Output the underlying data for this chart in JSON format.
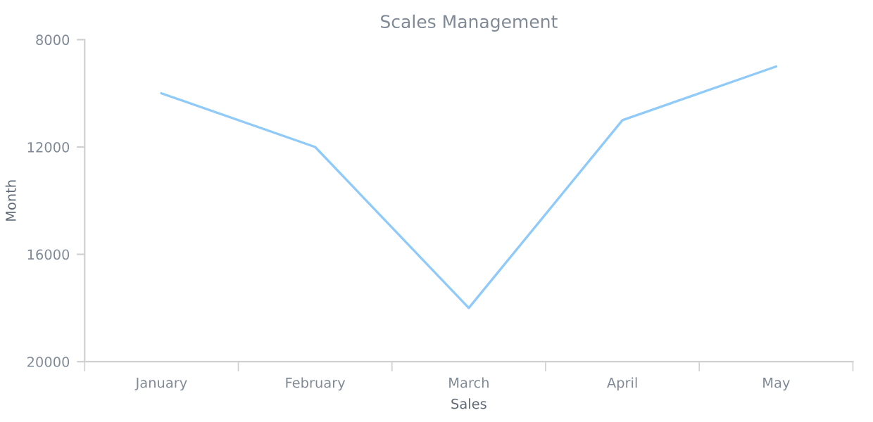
{
  "chart_data": {
    "type": "line",
    "title": "Scales Management",
    "xlabel": "Sales",
    "ylabel": "Month",
    "categories": [
      "January",
      "February",
      "March",
      "April",
      "May"
    ],
    "series": [
      {
        "color": "#90caf9",
        "values": [
          10000,
          12000,
          18000,
          11000,
          9000
        ]
      }
    ],
    "ylim": [
      20000,
      8000
    ],
    "yticks": [
      8000,
      12000,
      16000,
      20000
    ],
    "grid": false,
    "marker": "none",
    "line_style": "solid"
  }
}
